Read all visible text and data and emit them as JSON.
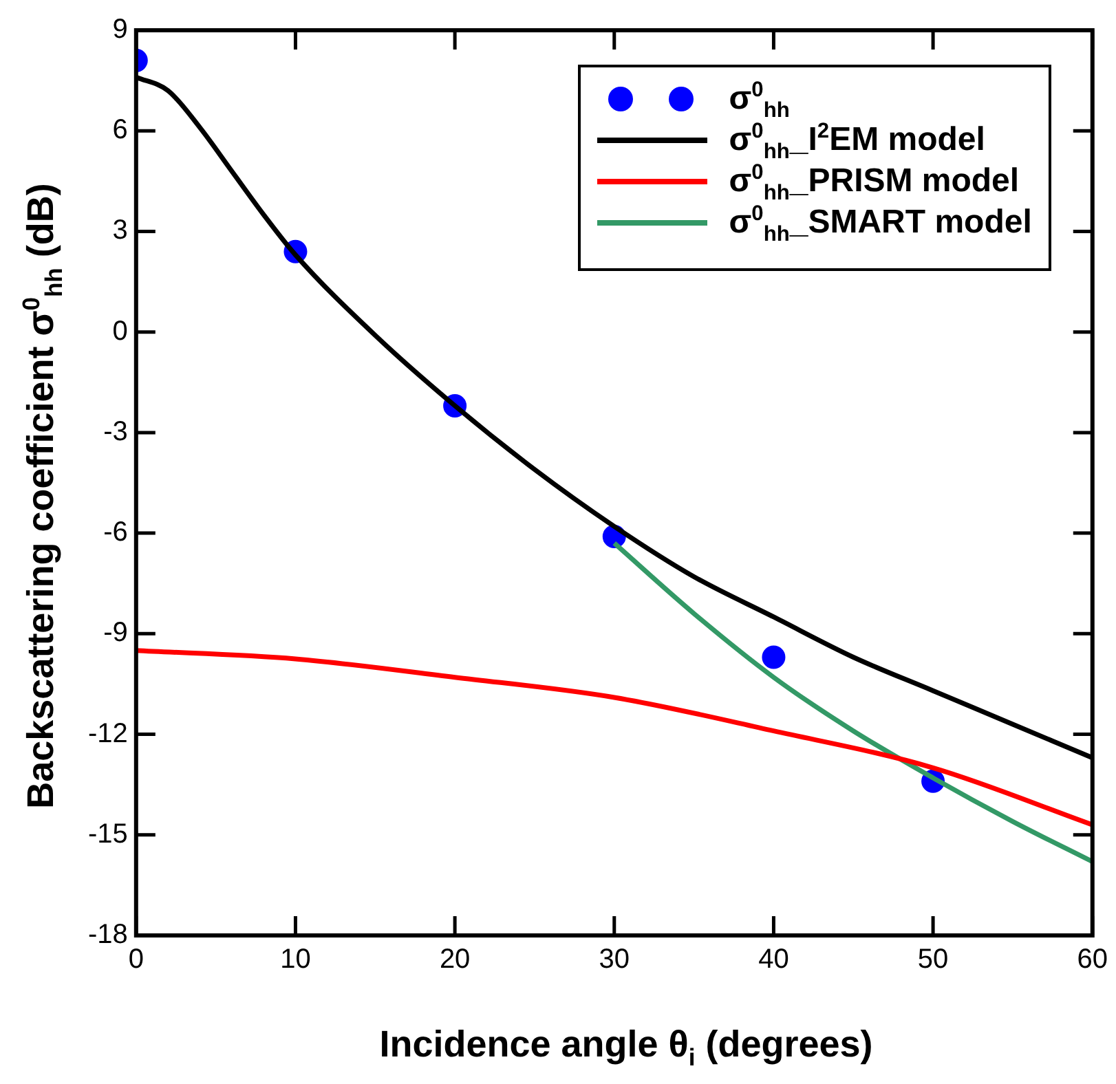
{
  "chart_data": {
    "type": "line",
    "xlabel": "Incidence angle θ$_{i}$ (degrees)",
    "ylabel": "Backscattering coefficient σ$^{0}$$_{hh}$ (dB)",
    "xlim": [
      0,
      60
    ],
    "xticks": [
      0,
      10,
      20,
      30,
      40,
      50,
      60
    ],
    "ylim": [
      -18,
      9
    ],
    "yticks": [
      -18,
      -15,
      -12,
      -9,
      -6,
      -3,
      0,
      3,
      6,
      9
    ],
    "legend": "top right",
    "series": [
      {
        "name": "σ$^{0}$$_{hh}$",
        "type": "scatter",
        "marker": "circle",
        "color": "#0000ff",
        "x": [
          0,
          10,
          20,
          30,
          40,
          50
        ],
        "values": [
          8.1,
          2.4,
          -2.2,
          -6.1,
          -9.7,
          -13.4
        ]
      },
      {
        "name": "σ$^{0}$$_{hh}$_I$^{2}$EM model",
        "color": "#000000",
        "x": [
          0,
          2,
          4,
          6,
          8,
          10,
          15,
          20,
          25,
          30,
          35,
          40,
          45,
          50,
          55,
          60
        ],
        "values": [
          7.6,
          7.2,
          6.1,
          4.8,
          3.5,
          2.3,
          -0.1,
          -2.2,
          -4.1,
          -5.8,
          -7.3,
          -8.5,
          -9.7,
          -10.7,
          -11.7,
          -12.7
        ]
      },
      {
        "name": "σ$^{0}$$_{hh}$_PRISM model",
        "color": "#ff0000",
        "x": [
          0,
          10,
          20,
          30,
          40,
          50,
          60
        ],
        "values": [
          -9.5,
          -9.75,
          -10.3,
          -10.9,
          -11.9,
          -13.0,
          -14.7
        ]
      },
      {
        "name": "σ$^{0}$$_{hh}$_SMART model",
        "color": "#339966",
        "x": [
          30,
          35,
          40,
          45,
          50,
          55,
          60
        ],
        "values": [
          -6.3,
          -8.4,
          -10.3,
          -11.9,
          -13.3,
          -14.6,
          -15.8
        ]
      }
    ]
  }
}
